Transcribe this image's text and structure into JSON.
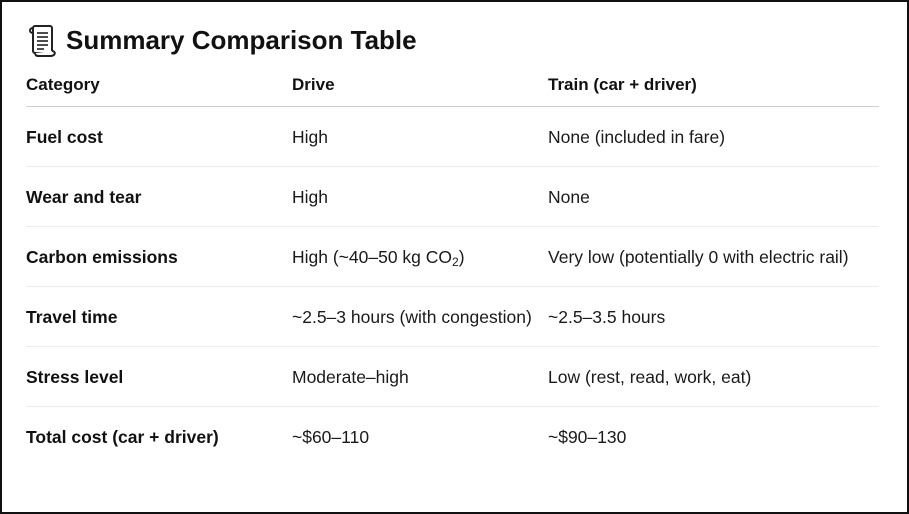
{
  "title": "Summary Comparison Table",
  "title_icon": "scroll-icon",
  "columns": [
    "Category",
    "Drive",
    "Train (car + driver)"
  ],
  "rows": [
    {
      "category": "Fuel cost",
      "drive": "High",
      "train": "None (included in fare)"
    },
    {
      "category": "Wear and tear",
      "drive": "High",
      "train": "None"
    },
    {
      "category": "Carbon emissions",
      "drive_main": "High (~40–50 kg CO",
      "drive_sub": "2",
      "drive_end": ")",
      "train": "Very low (potentially 0 with electric rail)"
    },
    {
      "category": "Travel time",
      "drive": "~2.5–3 hours (with congestion)",
      "train": "~2.5–3.5 hours"
    },
    {
      "category": "Stress level",
      "drive": "Moderate–high",
      "train": "Low (rest, read, work, eat)"
    },
    {
      "category": "Total cost (car + driver)",
      "drive": "~$60–110",
      "train": "~$90–130"
    }
  ]
}
